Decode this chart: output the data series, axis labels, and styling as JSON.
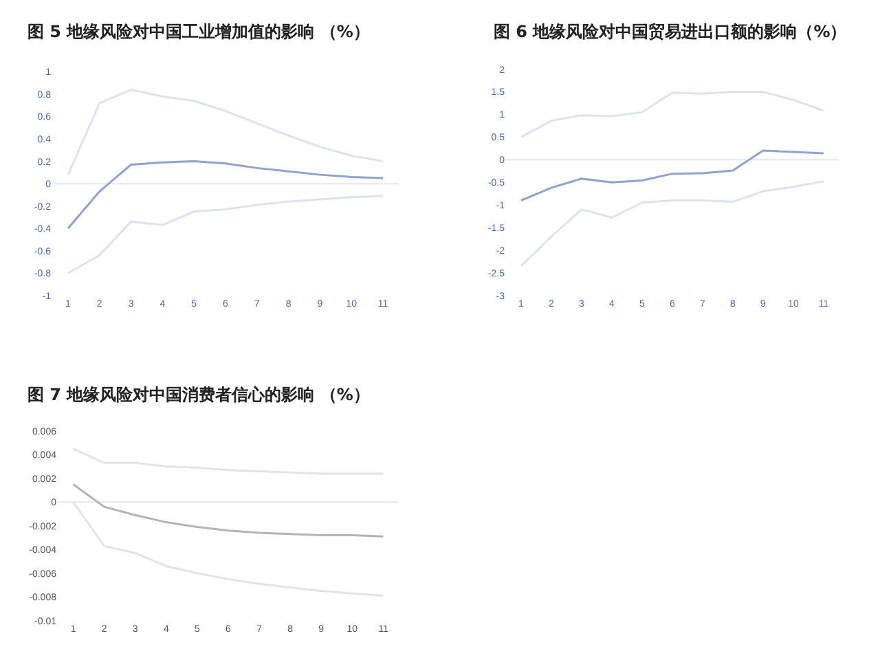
{
  "chart_data": [
    {
      "type": "line",
      "title": "图 5 地缘风险对中国工业增加值的影响 （%）",
      "categories": [
        "1",
        "2",
        "3",
        "4",
        "5",
        "6",
        "7",
        "8",
        "9",
        "10",
        "11"
      ],
      "ylim": [
        -1,
        1
      ],
      "yticks": [
        -1,
        -0.8,
        -0.6,
        -0.4,
        -0.2,
        0,
        0.2,
        0.4,
        0.6,
        0.8,
        1
      ],
      "ref_lines": [
        {
          "axis": "y",
          "value": 0,
          "color": "#e3e7f0"
        }
      ],
      "series": [
        {
          "color": "#dde3f0",
          "values": [
            0.08,
            0.72,
            0.84,
            0.78,
            0.74,
            0.65,
            0.54,
            0.43,
            0.33,
            0.25,
            0.2
          ]
        },
        {
          "color": "#8fa3cf",
          "values": [
            -0.4,
            -0.07,
            0.17,
            0.19,
            0.2,
            0.18,
            0.14,
            0.11,
            0.08,
            0.06,
            0.05
          ]
        },
        {
          "color": "#dde3f0",
          "values": [
            -0.8,
            -0.64,
            -0.34,
            -0.37,
            -0.25,
            -0.23,
            -0.19,
            -0.16,
            -0.14,
            -0.12,
            -0.11
          ]
        }
      ]
    },
    {
      "type": "line",
      "title": "图 6 地缘风险对中国贸易进出口额的影响（%）",
      "categories": [
        "1",
        "2",
        "3",
        "4",
        "5",
        "6",
        "7",
        "8",
        "9",
        "10",
        "11"
      ],
      "ylim": [
        -3,
        2
      ],
      "yticks": [
        -3,
        -2.5,
        -2,
        -1.5,
        -1,
        -0.5,
        0,
        0.5,
        1,
        1.5,
        2
      ],
      "ref_lines": [
        {
          "axis": "y",
          "value": 0,
          "color": "#e3e7f0"
        }
      ],
      "series": [
        {
          "color": "#dde3f0",
          "values": [
            0.5,
            0.86,
            0.98,
            0.96,
            1.05,
            1.48,
            1.46,
            1.5,
            1.5,
            1.32,
            1.08
          ]
        },
        {
          "color": "#8fa3cf",
          "values": [
            -0.9,
            -0.62,
            -0.42,
            -0.5,
            -0.46,
            -0.31,
            -0.3,
            -0.24,
            0.2,
            0.17,
            0.14
          ]
        },
        {
          "color": "#dde3f0",
          "values": [
            -2.35,
            -1.7,
            -1.1,
            -1.28,
            -0.95,
            -0.9,
            -0.9,
            -0.93,
            -0.7,
            -0.6,
            -0.48
          ]
        }
      ]
    },
    {
      "type": "line",
      "title": "图 7 地缘风险对中国消费者信心的影响 （%）",
      "categories": [
        "1",
        "2",
        "3",
        "4",
        "5",
        "6",
        "7",
        "8",
        "9",
        "10",
        "11"
      ],
      "ylim": [
        -0.01,
        0.006
      ],
      "yticks": [
        -0.01,
        -0.008,
        -0.006,
        -0.004,
        -0.002,
        0,
        0.002,
        0.004,
        0.006
      ],
      "ref_lines": [
        {
          "axis": "y",
          "value": 0,
          "color": "#e3e7f0"
        }
      ],
      "series": [
        {
          "color": "#e4e4e4",
          "values": [
            0.0045,
            0.0033,
            0.0033,
            0.003,
            0.0029,
            0.0027,
            0.0026,
            0.0025,
            0.0024,
            0.0024,
            0.0024
          ]
        },
        {
          "color": "#b4b4b4",
          "values": [
            0.0015,
            -0.0004,
            -0.0011,
            -0.0017,
            -0.0021,
            -0.0024,
            -0.0026,
            -0.0027,
            -0.0028,
            -0.0028,
            -0.0029
          ]
        },
        {
          "color": "#e4e4e4",
          "values": [
            0.0,
            -0.0037,
            -0.0043,
            -0.0054,
            -0.006,
            -0.0065,
            -0.0069,
            -0.0072,
            -0.0075,
            -0.0077,
            -0.0079
          ]
        }
      ]
    }
  ]
}
